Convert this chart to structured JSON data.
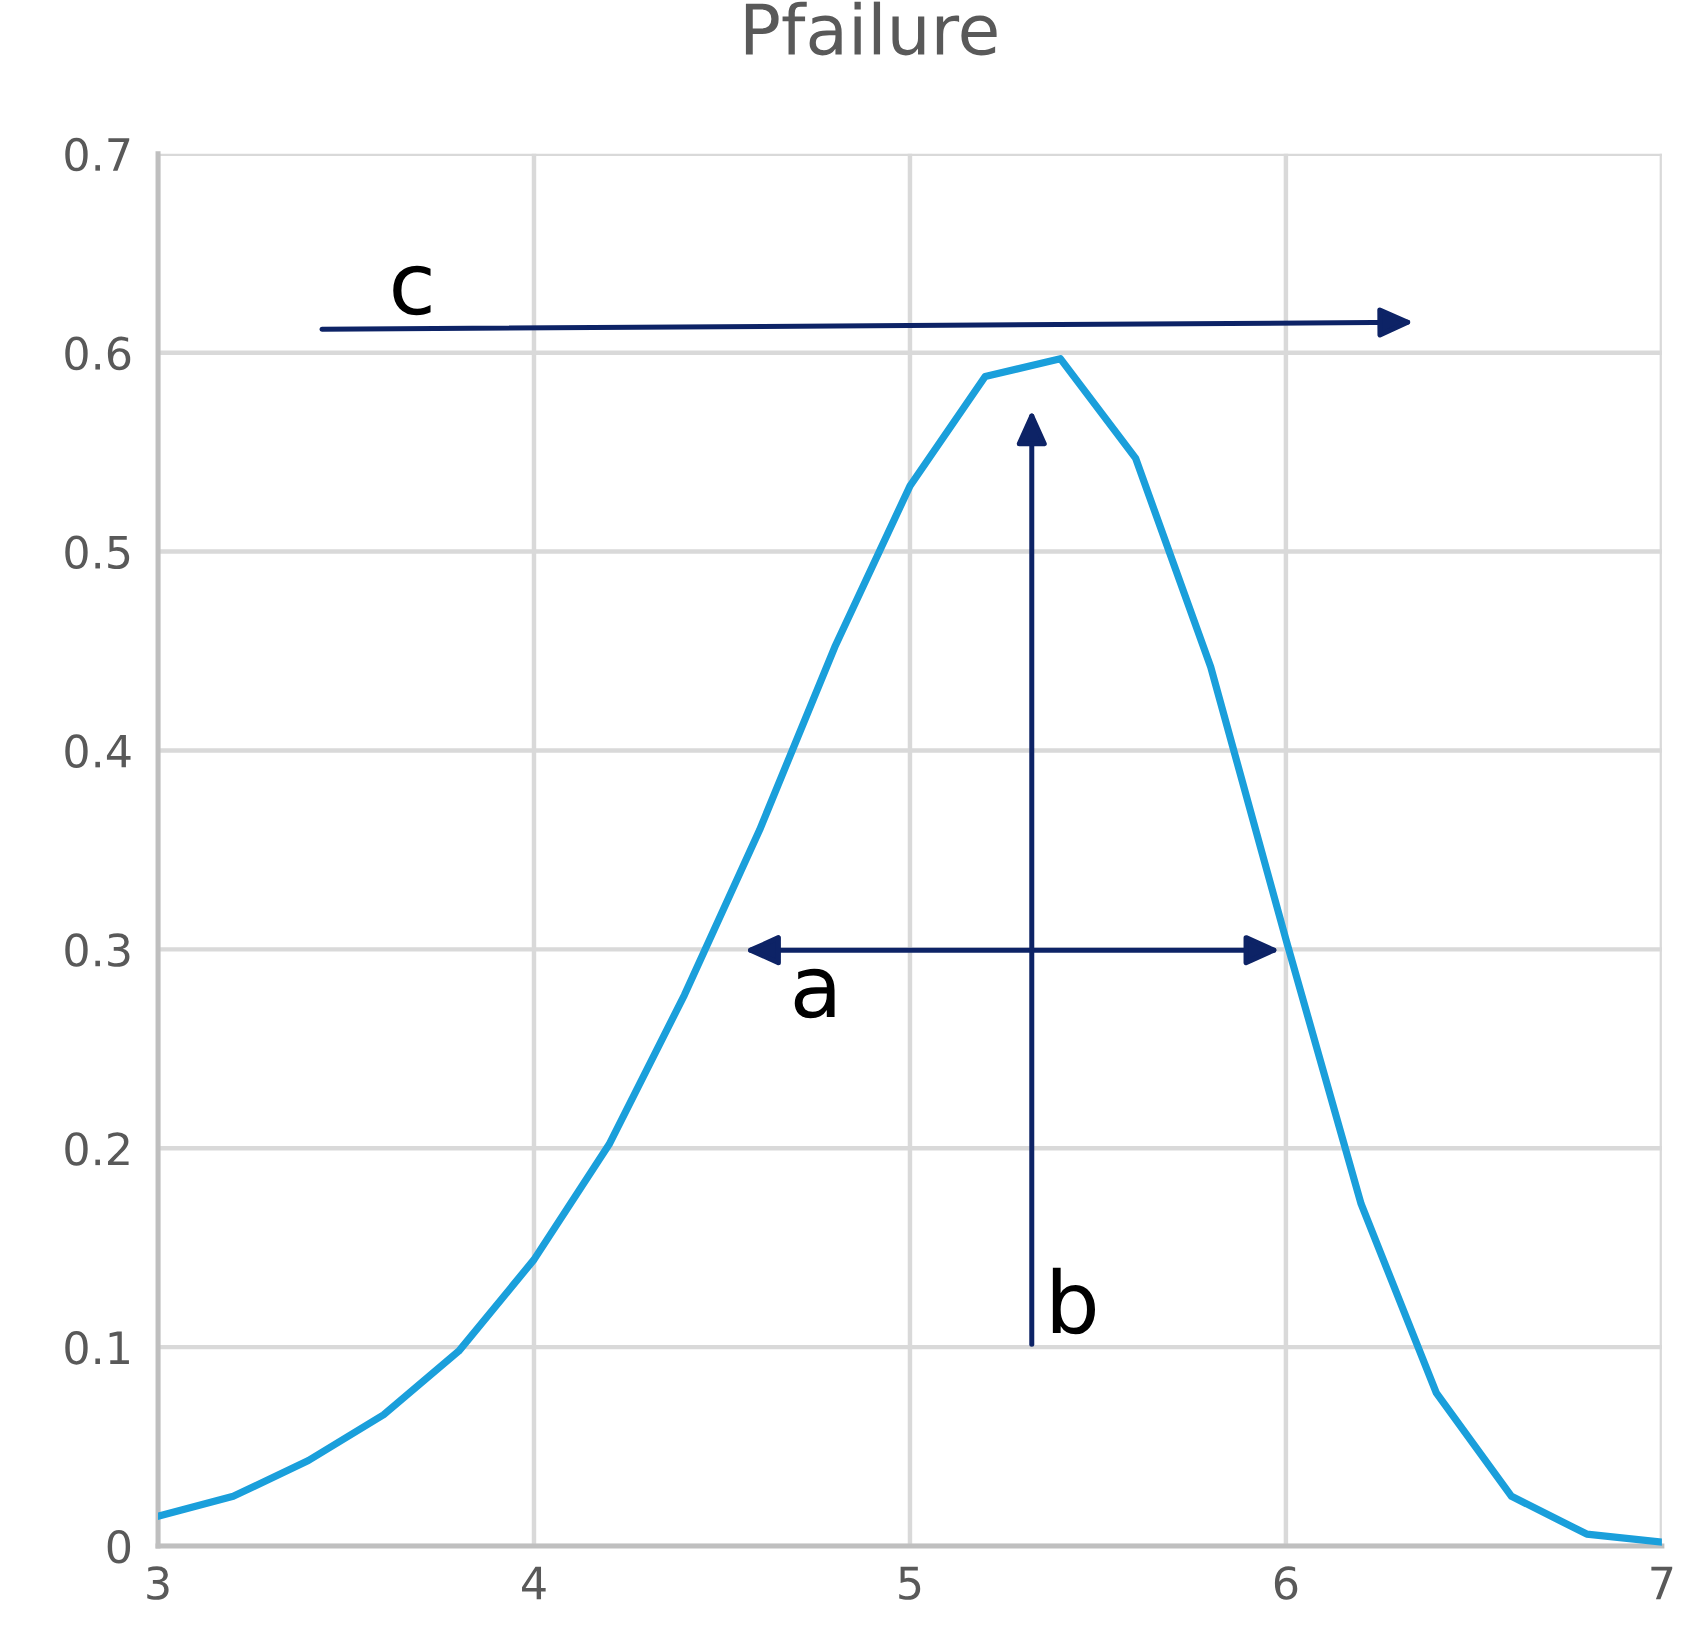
{
  "chart_data": {
    "type": "line",
    "title": "Pfailure",
    "x": [
      3.0,
      3.2,
      3.4,
      3.6,
      3.8,
      4.0,
      4.2,
      4.4,
      4.6,
      4.8,
      5.0,
      5.2,
      5.4,
      5.6,
      5.8,
      6.0,
      6.2,
      6.4,
      6.6,
      6.8,
      7.0
    ],
    "series": [
      {
        "color": "#1a9fdb",
        "values": [
          0.015,
          0.025,
          0.043,
          0.066,
          0.098,
          0.144,
          0.202,
          0.277,
          0.36,
          0.452,
          0.533,
          0.588,
          0.597,
          0.547,
          0.442,
          0.305,
          0.172,
          0.077,
          0.025,
          0.006,
          0.002
        ]
      }
    ],
    "xlim": [
      3,
      7
    ],
    "ylim": [
      0,
      0.7
    ],
    "xticks": [
      3,
      4,
      5,
      6,
      7
    ],
    "yticks": [
      0,
      0.1,
      0.2,
      0.3,
      0.4,
      0.5,
      0.6,
      0.7
    ],
    "grid": true,
    "marker": "none",
    "line_style": "solid",
    "annotations": [
      "a",
      "b",
      "c"
    ]
  }
}
